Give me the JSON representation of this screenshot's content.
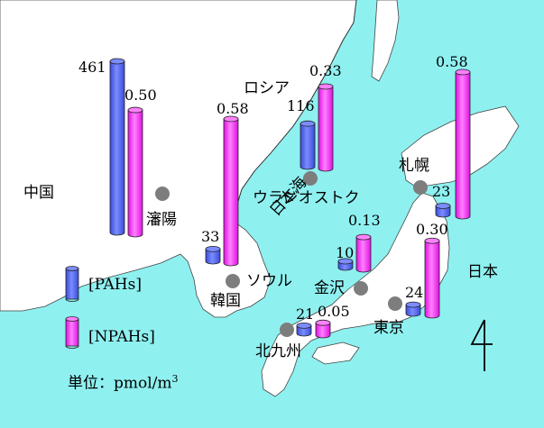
{
  "colors": {
    "sea": "#8ff0f0",
    "land": "#ffffff",
    "pahs_fill": "#5b6cf0",
    "npahs_fill": "#ff33ff",
    "city_dot": "#7d7d7d"
  },
  "places": {
    "china": "中国",
    "shenyang": "瀋陽",
    "korea": "韓国",
    "seoul": "ソウル",
    "russia": "ロシア",
    "vladivostok": "ウラジオストク",
    "sea_of_japan": "日本海",
    "japan": "日本",
    "sapporo": "札幌",
    "kanazawa": "金沢",
    "tokyo": "東京",
    "kitakyushu": "北九州"
  },
  "chart_data": {
    "type": "bar",
    "units": "pmol/m",
    "units_superscript": "3",
    "series": [
      {
        "name": "[PAHs]",
        "values": [
          461,
          33,
          116,
          23,
          10,
          24,
          21
        ]
      },
      {
        "name": "[NPAHs]",
        "values": [
          0.5,
          0.58,
          0.33,
          0.58,
          0.13,
          0.3,
          0.05
        ]
      }
    ],
    "categories": [
      "瀋陽",
      "ソウル",
      "ウラジオストク",
      "札幌",
      "金沢",
      "東京",
      "北九州"
    ],
    "labels": {
      "pahs": [
        "461",
        "33",
        "116",
        "23",
        "10",
        "24",
        "21"
      ],
      "npahs": [
        "0.50",
        "0.58",
        "0.33",
        "0.58",
        "0.13",
        "0.30",
        "0.05"
      ]
    }
  },
  "legend": {
    "pahs": "[PAHs]",
    "npahs": "[NPAHs]",
    "unit_prefix": "単位：",
    "unit": "pmol/m",
    "unit_sup": "3"
  }
}
